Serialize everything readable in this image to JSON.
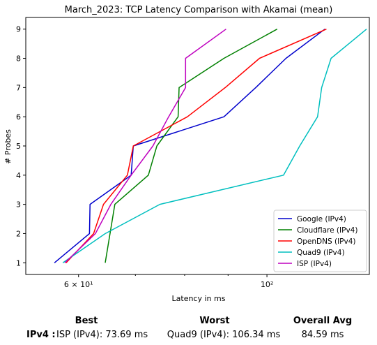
{
  "chart_data": {
    "type": "line",
    "title": "March_2023: TCP Latency Comparison with Akamai (mean)",
    "xlabel": "Latency in ms",
    "ylabel": "# Probes",
    "xscale": "log",
    "xlim": [
      52,
      132
    ],
    "ylim": [
      0.6,
      9.4
    ],
    "xticks": [
      {
        "value": 60,
        "label": "6 × 10¹"
      },
      {
        "value": 100,
        "label": "10²"
      }
    ],
    "yticks": [
      1,
      2,
      3,
      4,
      5,
      6,
      7,
      8,
      9
    ],
    "grid": false,
    "legend": "bottom-right",
    "series": [
      {
        "name": "Google (IPv4)",
        "color": "#0000cc",
        "points": [
          [
            56.2,
            1
          ],
          [
            61.8,
            2
          ],
          [
            61.9,
            3
          ],
          [
            69.2,
            4
          ],
          [
            69.6,
            5
          ],
          [
            89,
            6
          ],
          [
            97,
            7
          ],
          [
            105.3,
            8
          ],
          [
            117,
            9
          ]
        ]
      },
      {
        "name": "Cloudflare (IPv4)",
        "color": "#008000",
        "points": [
          [
            64.5,
            1
          ],
          [
            66.2,
            3
          ],
          [
            72.5,
            4
          ],
          [
            74.2,
            5
          ],
          [
            78.6,
            6
          ],
          [
            78.8,
            7
          ],
          [
            89,
            8
          ],
          [
            102.8,
            9
          ]
        ]
      },
      {
        "name": "OpenDNS (IPv4)",
        "color": "#ff0000",
        "points": [
          [
            58,
            1
          ],
          [
            62.5,
            2
          ],
          [
            64.2,
            3
          ],
          [
            68.5,
            4
          ],
          [
            69.6,
            5
          ],
          [
            80.6,
            6
          ],
          [
            89.3,
            7
          ],
          [
            98,
            8
          ],
          [
            117.5,
            9
          ]
        ]
      },
      {
        "name": "Quad9 (IPv4)",
        "color": "#00bfbf",
        "points": [
          [
            57.5,
            1
          ],
          [
            64.5,
            2
          ],
          [
            74.8,
            3
          ],
          [
            104.6,
            4
          ],
          [
            109.3,
            5
          ],
          [
            114.7,
            6
          ],
          [
            116,
            7
          ],
          [
            119,
            8
          ],
          [
            131,
            9
          ]
        ]
      },
      {
        "name": "ISP (IPv4)",
        "color": "#bf00bf",
        "points": [
          [
            57.8,
            1
          ],
          [
            62.8,
            2
          ],
          [
            65.5,
            3
          ],
          [
            69.2,
            4
          ],
          [
            73.4,
            5
          ],
          [
            76.6,
            6
          ],
          [
            80.2,
            7
          ],
          [
            80.2,
            8
          ],
          [
            89.5,
            9
          ]
        ]
      }
    ]
  },
  "summary": {
    "best_header": "Best",
    "worst_header": "Worst",
    "avg_header": "Overall Avg",
    "row_label": "IPv4 :",
    "best_value": "ISP (IPv4): 73.69 ms",
    "worst_value": "Quad9 (IPv4): 106.34 ms",
    "avg_value": "84.59 ms"
  }
}
